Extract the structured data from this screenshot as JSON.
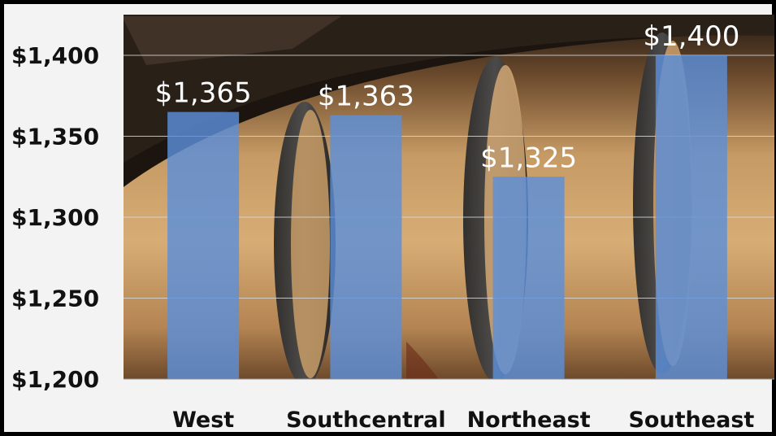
{
  "chart_data": {
    "type": "bar",
    "categories": [
      "West",
      "Southcentral",
      "Northeast",
      "Southeast"
    ],
    "values": [
      1365,
      1363,
      1325,
      1400
    ],
    "data_labels": [
      "$1,365",
      "$1,363",
      "$1,325",
      "$1,400"
    ],
    "ylim": [
      1200,
      1400
    ],
    "yticks": [
      1200,
      1250,
      1300,
      1350,
      1400
    ],
    "ytick_labels": [
      "$1,200",
      "$1,250",
      "$1,300",
      "$1,350",
      "$1,400"
    ],
    "title": "",
    "xlabel": "",
    "ylabel": "",
    "grid": true,
    "legend": "none",
    "bar_color": "#5b8fd9",
    "background": "photo of wooden whiskey barrel"
  }
}
